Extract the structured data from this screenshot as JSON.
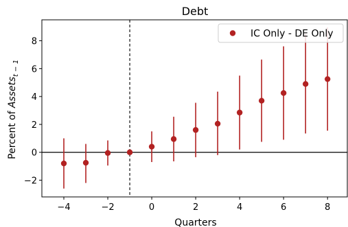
{
  "chart_data": {
    "type": "scatter",
    "title": "Debt",
    "xlabel": "Quarters",
    "ylabel_prefix": "Percent of ",
    "ylabel_math": "Assets",
    "ylabel_subscript": "t − 1",
    "xlim": [
      -5,
      8.9
    ],
    "ylim": [
      -3.2,
      9.5
    ],
    "xticks": [
      -4,
      -2,
      0,
      2,
      4,
      6,
      8
    ],
    "xtick_labels": [
      "−4",
      "−2",
      "0",
      "2",
      "4",
      "6",
      "8"
    ],
    "yticks": [
      -2,
      0,
      2,
      4,
      6,
      8
    ],
    "ytick_labels": [
      "−2",
      "0",
      "2",
      "4",
      "6",
      "8"
    ],
    "reference_lines": {
      "horizontal_y": 0,
      "vertical_x_dashed": -1
    },
    "legend": {
      "position": "top-right"
    },
    "series": [
      {
        "name": "IC Only - DE Only",
        "color": "#b22222",
        "marker": "circle",
        "points": [
          {
            "x": -4,
            "y": -0.8,
            "lo": -2.6,
            "hi": 1.0
          },
          {
            "x": -3,
            "y": -0.75,
            "lo": -2.2,
            "hi": 0.6
          },
          {
            "x": -2,
            "y": -0.05,
            "lo": -0.95,
            "hi": 0.85
          },
          {
            "x": -1,
            "y": 0.0,
            "lo": 0.0,
            "hi": 0.0
          },
          {
            "x": 0,
            "y": 0.4,
            "lo": -0.7,
            "hi": 1.5
          },
          {
            "x": 1,
            "y": 0.95,
            "lo": -0.65,
            "hi": 2.55
          },
          {
            "x": 2,
            "y": 1.6,
            "lo": -0.35,
            "hi": 3.55
          },
          {
            "x": 3,
            "y": 2.05,
            "lo": -0.2,
            "hi": 4.35
          },
          {
            "x": 4,
            "y": 2.85,
            "lo": 0.2,
            "hi": 5.5
          },
          {
            "x": 5,
            "y": 3.7,
            "lo": 0.75,
            "hi": 6.65
          },
          {
            "x": 6,
            "y": 4.25,
            "lo": 0.9,
            "hi": 7.6
          },
          {
            "x": 7,
            "y": 4.9,
            "lo": 1.35,
            "hi": 8.5
          },
          {
            "x": 8,
            "y": 5.25,
            "lo": 1.55,
            "hi": 8.95
          }
        ]
      }
    ]
  }
}
